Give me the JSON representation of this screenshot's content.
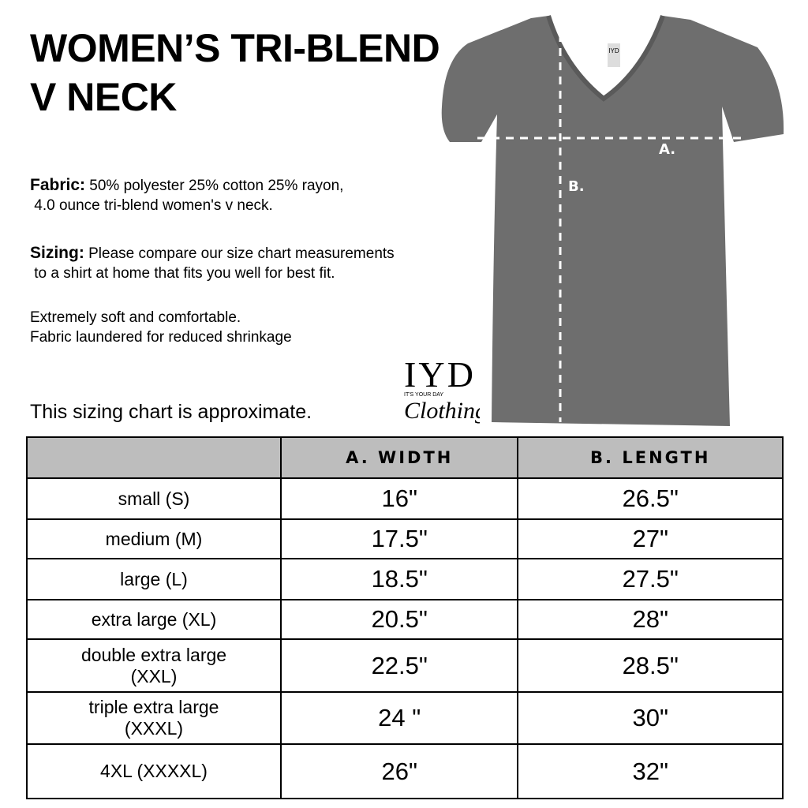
{
  "title_line1": "WOMEN’S TRI-BLEND",
  "title_line2": "V NECK",
  "fabric": {
    "label": "Fabric:",
    "line1": "50% polyester 25% cotton 25% rayon,",
    "line2": "4.0 ounce tri-blend women's v neck."
  },
  "sizing": {
    "label": "Sizing:",
    "line1": "Please compare our size chart measurements",
    "line2": "to a shirt at home that fits you well for best fit."
  },
  "extra": {
    "line1": "Extremely soft and comfortable.",
    "line2": "Fabric laundered for reduced shrinkage"
  },
  "note": "This sizing chart is approximate.",
  "shirt": {
    "label_a": "A.",
    "label_b": "B.",
    "tag": "IYD",
    "color": "#6e6e6e"
  },
  "logo": {
    "main": "IYD",
    "small": "IT'S YOUR DAY",
    "script": "Clothing"
  },
  "table": {
    "headers": [
      "",
      "A. WIDTH",
      "B. LENGTH"
    ],
    "rows": [
      {
        "size": "small (S)",
        "width": "16\"",
        "length": "26.5\""
      },
      {
        "size": "medium (M)",
        "width": "17.5\"",
        "length": "27\""
      },
      {
        "size": "large (L)",
        "width": "18.5\"",
        "length": "27.5\""
      },
      {
        "size": "extra large (XL)",
        "width": "20.5\"",
        "length": "28\""
      },
      {
        "size": "double extra large (XXL)",
        "width": "22.5\"",
        "length": "28.5\""
      },
      {
        "size": "triple extra large (XXXL)",
        "width": "24 \"",
        "length": "30\""
      },
      {
        "size": "4XL (XXXXL)",
        "width": "26\"",
        "length": "32\""
      }
    ]
  }
}
